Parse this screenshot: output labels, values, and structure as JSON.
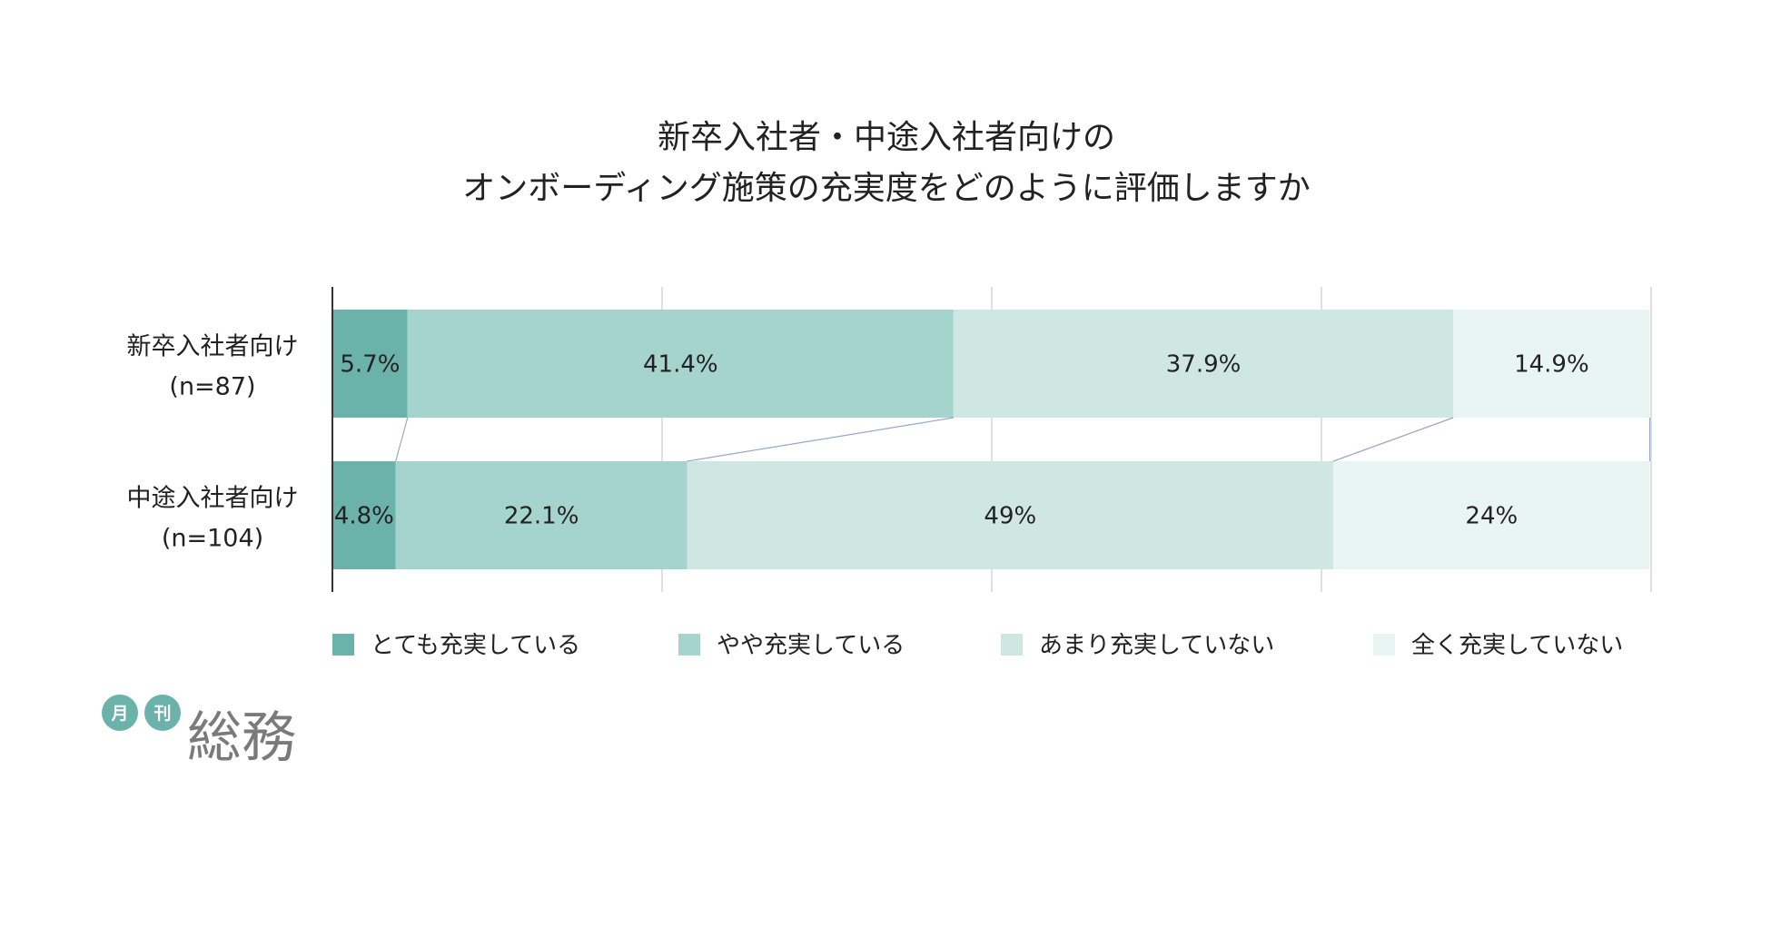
{
  "chart_data": {
    "type": "bar",
    "orientation": "horizontal",
    "stacked": true,
    "percent": true,
    "title": [
      "新卒入社者・中途入社者向けの",
      "オンボーディング施策の充実度をどのように評価しますか"
    ],
    "categories": [
      [
        "新卒入社者向け",
        "(n=87)"
      ],
      [
        "中途入社者向け",
        "(n=104)"
      ]
    ],
    "series": [
      {
        "name": "とても充実している",
        "color": "#6bb3aa",
        "values": [
          5.7,
          4.8
        ],
        "labels": [
          "5.7%",
          "4.8%"
        ]
      },
      {
        "name": "やや充実している",
        "color": "#a5d3cd",
        "values": [
          41.4,
          22.1
        ],
        "labels": [
          "41.4%",
          "22.1%"
        ]
      },
      {
        "name": "あまり充実していない",
        "color": "#cfe7e3",
        "values": [
          37.9,
          49
        ],
        "labels": [
          "37.9%",
          "49%"
        ]
      },
      {
        "name": "全く充実していない",
        "color": "#e9f5f3",
        "values": [
          14.9,
          24
        ],
        "labels": [
          "14.9%",
          "24%"
        ]
      }
    ],
    "xlim": [
      0,
      100
    ],
    "grid": true,
    "legend_position": "bottom",
    "series_connector_lines": true
  },
  "logo": {
    "small_1": "月",
    "small_2": "刊",
    "main": "総務",
    "circle_color": "#6bb3aa"
  }
}
